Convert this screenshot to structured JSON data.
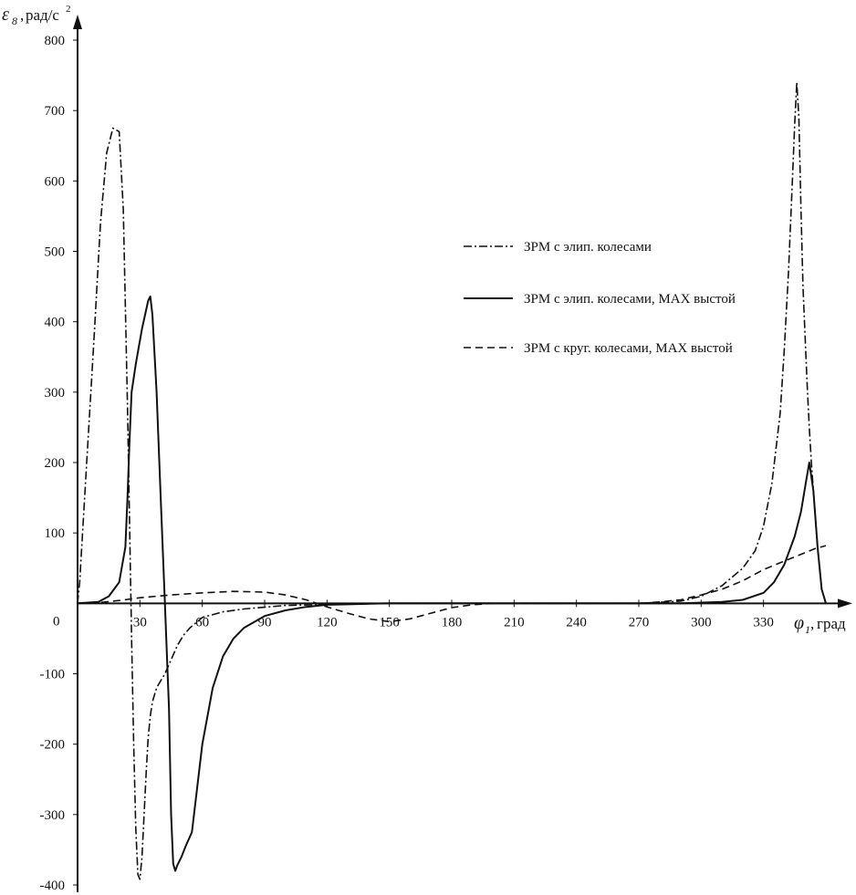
{
  "chart_data": {
    "type": "line",
    "title": "",
    "ylabel": {
      "symbol": "ε",
      "subscript": "8",
      "unit": "рад/с",
      "power": "2"
    },
    "xlabel": {
      "symbol": "φ",
      "subscript": "1",
      "unit": "град"
    },
    "origin_label": "0",
    "xlim": [
      0,
      360
    ],
    "ylim": [
      -400,
      800
    ],
    "x_ticks": [
      30,
      60,
      90,
      120,
      150,
      180,
      210,
      240,
      270,
      300,
      330
    ],
    "y_ticks": [
      -400,
      -300,
      -200,
      -100,
      100,
      200,
      300,
      400,
      500,
      600,
      700,
      800
    ],
    "grid": false,
    "legend_position": "right",
    "series": [
      {
        "name": "ЗРМ с элип. колесами",
        "style": "dashdot",
        "color": "#111111",
        "x": [
          0,
          1,
          4,
          8,
          11,
          14,
          17,
          20,
          22,
          23,
          24,
          25,
          26,
          27,
          28,
          29,
          30,
          31,
          32,
          33,
          34,
          35,
          36,
          38,
          40,
          42,
          45,
          48,
          51,
          54,
          60,
          70,
          80,
          100,
          150,
          200,
          250,
          270,
          290,
          300,
          310,
          320,
          326,
          330,
          334,
          338,
          340,
          342,
          344,
          345,
          346,
          347,
          348,
          349,
          350,
          351,
          352,
          353,
          354,
          356,
          358,
          360
        ],
        "y": [
          0,
          30,
          180,
          380,
          540,
          640,
          675,
          670,
          560,
          420,
          280,
          120,
          -50,
          -200,
          -320,
          -385,
          -392,
          -360,
          -300,
          -240,
          -190,
          -160,
          -140,
          -120,
          -110,
          -100,
          -80,
          -60,
          -45,
          -35,
          -20,
          -12,
          -8,
          -3,
          0,
          0,
          0,
          0,
          3,
          10,
          25,
          50,
          75,
          110,
          170,
          270,
          360,
          470,
          610,
          680,
          740,
          690,
          560,
          450,
          380,
          310,
          250,
          200,
          160,
          80,
          20,
          0
        ]
      },
      {
        "name": "ЗРМ с элип. колесами, МАХ выстой",
        "style": "solid",
        "color": "#111111",
        "x": [
          0,
          10,
          15,
          20,
          23,
          24,
          25,
          26,
          28,
          31,
          34,
          35,
          36,
          38,
          40,
          42,
          44,
          45,
          46,
          47,
          48,
          50,
          52,
          55,
          60,
          65,
          70,
          75,
          80,
          90,
          100,
          110,
          120,
          150,
          200,
          250,
          290,
          310,
          320,
          330,
          335,
          340,
          345,
          348,
          350,
          352,
          354,
          356,
          358,
          360
        ],
        "y": [
          0,
          2,
          10,
          30,
          80,
          150,
          230,
          300,
          340,
          390,
          430,
          436,
          410,
          300,
          150,
          0,
          -150,
          -300,
          -370,
          -380,
          -372,
          -360,
          -345,
          -325,
          -200,
          -120,
          -75,
          -50,
          -35,
          -18,
          -10,
          -5,
          -2,
          0,
          0,
          0,
          0,
          2,
          5,
          15,
          30,
          55,
          95,
          130,
          165,
          200,
          160,
          80,
          20,
          0
        ]
      },
      {
        "name": "ЗРМ с круг. колесами, МАХ выстой",
        "style": "dashed",
        "color": "#111111",
        "x": [
          0,
          10,
          20,
          30,
          45,
          60,
          75,
          90,
          100,
          110,
          120,
          130,
          140,
          150,
          160,
          170,
          180,
          190,
          200,
          220,
          250,
          270,
          280,
          290,
          300,
          310,
          320,
          330,
          340,
          350,
          355,
          360
        ],
        "y": [
          0,
          1,
          4,
          8,
          12,
          15,
          17,
          16,
          12,
          5,
          -5,
          -14,
          -22,
          -26,
          -22,
          -14,
          -6,
          -2,
          0,
          0,
          0,
          0,
          2,
          5,
          12,
          20,
          32,
          48,
          60,
          72,
          78,
          82
        ]
      }
    ]
  }
}
